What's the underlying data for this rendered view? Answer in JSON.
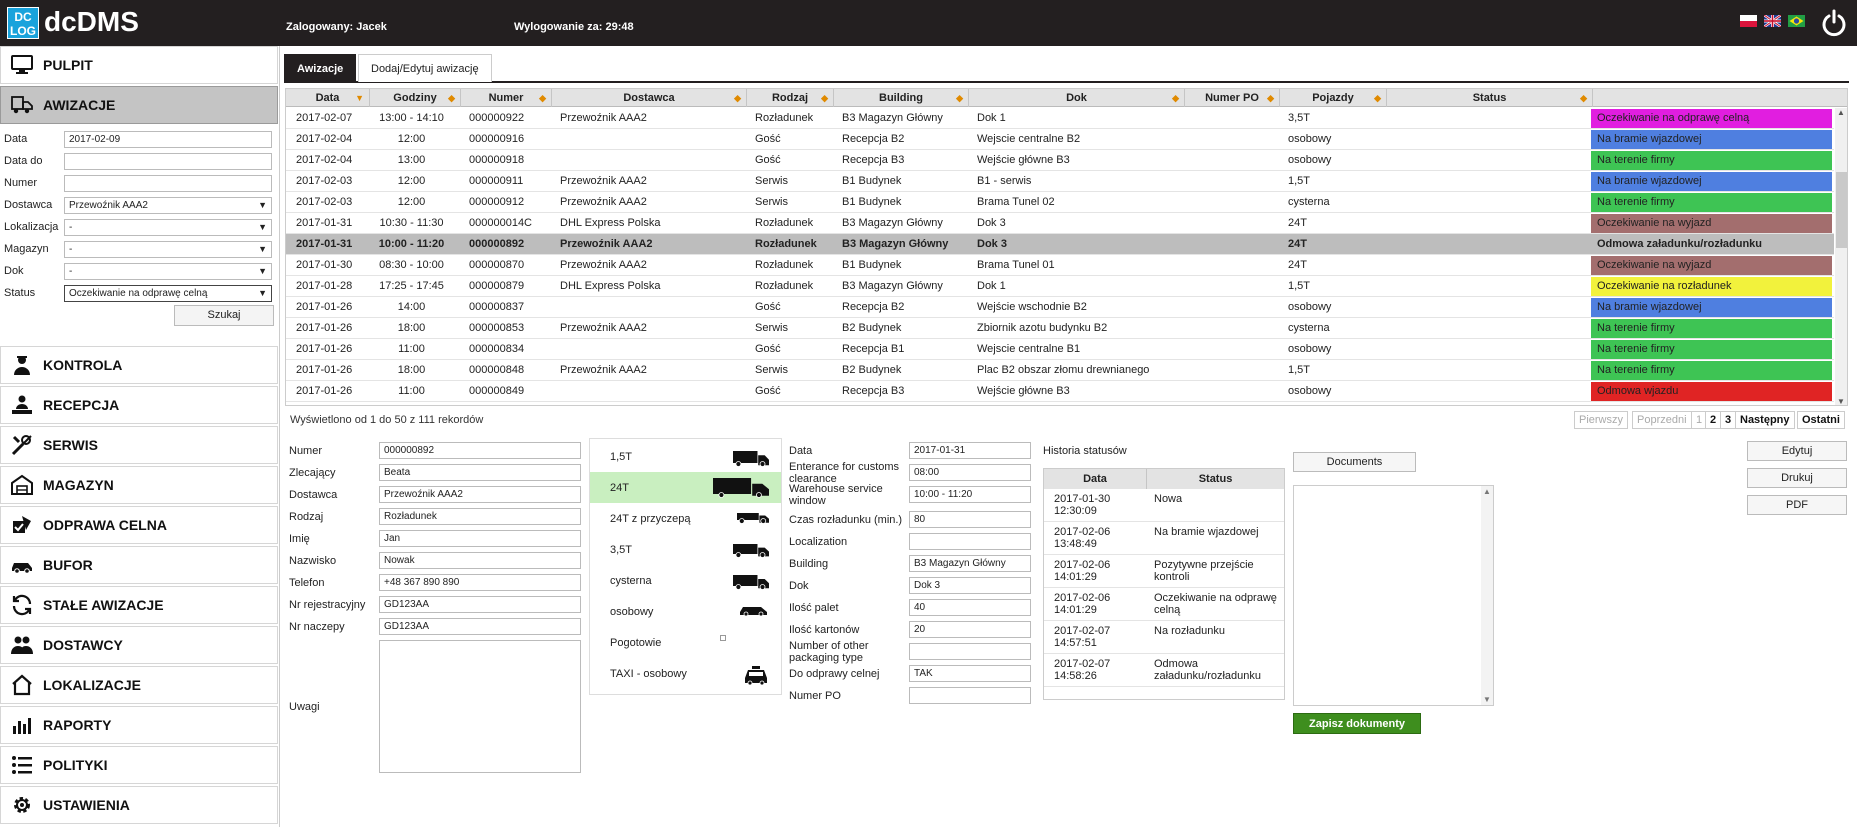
{
  "header": {
    "logo_text": "DC LOG",
    "app_title": "dcDMS",
    "logged_user": "Zalogowany: Jacek",
    "logout_timer": "Wylogowanie za: 29:48",
    "accent_color": "#1aa3dc"
  },
  "sidebar": {
    "items": [
      {
        "label": "PULPIT",
        "icon": "monitor-icon"
      },
      {
        "label": "AWIZACJE",
        "icon": "truck-note-icon",
        "active": true
      },
      {
        "label": "KONTROLA",
        "icon": "guard-icon"
      },
      {
        "label": "RECEPCJA",
        "icon": "reception-icon"
      },
      {
        "label": "SERWIS",
        "icon": "tools-icon"
      },
      {
        "label": "MAGAZYN",
        "icon": "warehouse-icon"
      },
      {
        "label": "ODPRAWA CELNA",
        "icon": "customs-icon"
      },
      {
        "label": "BUFOR",
        "icon": "car-icon"
      },
      {
        "label": "STAŁE AWIZACJE",
        "icon": "refresh-icon"
      },
      {
        "label": "DOSTAWCY",
        "icon": "people-icon"
      },
      {
        "label": "LOKALIZACJE",
        "icon": "home-icon"
      },
      {
        "label": "RAPORTY",
        "icon": "chart-icon"
      },
      {
        "label": "POLITYKI",
        "icon": "list-icon"
      },
      {
        "label": "USTAWIENIA",
        "icon": "gear-icon"
      }
    ],
    "filters": [
      {
        "label": "Data",
        "value": "2017-02-09"
      },
      {
        "label": "Data do",
        "value": ""
      },
      {
        "label": "Numer",
        "value": ""
      },
      {
        "label": "Dostawca",
        "value": "Przewoźnik AAA2",
        "select": true
      },
      {
        "label": "Lokalizacja",
        "value": "-",
        "select": true
      },
      {
        "label": "Magazyn",
        "value": "-",
        "select": true
      },
      {
        "label": "Dok",
        "value": "-",
        "select": true
      },
      {
        "label": "Status",
        "value": "Oczekiwanie na odprawę celną",
        "select": true
      }
    ],
    "search_label": "Szukaj"
  },
  "tabs": [
    "Awizacje",
    "Dodaj/Edytuj awizację"
  ],
  "grid": {
    "columns": [
      "Data",
      "Godziny",
      "Numer",
      "Dostawca",
      "Rodzaj",
      "Building",
      "Dok",
      "Numer PO",
      "Pojazdy",
      "Status"
    ],
    "rows": [
      {
        "data": "2017-02-07",
        "godziny": "13:00 - 14:10",
        "numer": "000000922",
        "dostawca": "Przewoźnik AAA2",
        "rodzaj": "Rozładunek",
        "building": "B3 Magazyn Główny",
        "dok": "Dok 1",
        "po": "",
        "pojazdy": "3,5T",
        "status": "Oczekiwanie na odprawę celną",
        "color": "#e11ee0"
      },
      {
        "data": "2017-02-04",
        "godziny": "12:00",
        "numer": "000000916",
        "dostawca": "",
        "rodzaj": "Gość",
        "building": "Recepcja B2",
        "dok": "Wejscie centralne B2",
        "po": "",
        "pojazdy": "osobowy",
        "status": "Na bramie wjazdowej",
        "color": "#4f7fe0"
      },
      {
        "data": "2017-02-04",
        "godziny": "13:00",
        "numer": "000000918",
        "dostawca": "",
        "rodzaj": "Gość",
        "building": "Recepcja B3",
        "dok": "Wejście główne B3",
        "po": "",
        "pojazdy": "osobowy",
        "status": "Na terenie firmy",
        "color": "#3ec454"
      },
      {
        "data": "2017-02-03",
        "godziny": "12:00",
        "numer": "000000911",
        "dostawca": "Przewoźnik AAA2",
        "rodzaj": "Serwis",
        "building": "B1 Budynek",
        "dok": "B1 - serwis",
        "po": "",
        "pojazdy": "1,5T",
        "status": "Na bramie wjazdowej",
        "color": "#4f7fe0"
      },
      {
        "data": "2017-02-03",
        "godziny": "12:00",
        "numer": "000000912",
        "dostawca": "Przewoźnik AAA2",
        "rodzaj": "Serwis",
        "building": "B1 Budynek",
        "dok": "Brama Tunel 02",
        "po": "",
        "pojazdy": "cysterna",
        "status": "Na terenie firmy",
        "color": "#3ec454"
      },
      {
        "data": "2017-01-31",
        "godziny": "10:30 - 11:30",
        "numer": "000000014C",
        "dostawca": "DHL Express Polska",
        "rodzaj": "Rozładunek",
        "building": "B3 Magazyn Główny",
        "dok": "Dok 3",
        "po": "",
        "pojazdy": "24T",
        "status": "Oczekiwanie na wyjazd",
        "color": "#a36e6e"
      },
      {
        "data": "2017-01-31",
        "godziny": "10:00 - 11:20",
        "numer": "000000892",
        "dostawca": "Przewoźnik AAA2",
        "rodzaj": "Rozładunek",
        "building": "B3 Magazyn Główny",
        "dok": "Dok 3",
        "po": "",
        "pojazdy": "24T",
        "status": "Odmowa załadunku/rozładunku",
        "color": "#bdbdbd",
        "selected": true
      },
      {
        "data": "2017-01-30",
        "godziny": "08:30 - 10:00",
        "numer": "000000870",
        "dostawca": "Przewoźnik AAA2",
        "rodzaj": "Rozładunek",
        "building": "B1 Budynek",
        "dok": "Brama Tunel 01",
        "po": "",
        "pojazdy": "24T",
        "status": "Oczekiwanie na wyjazd",
        "color": "#a36e6e"
      },
      {
        "data": "2017-01-28",
        "godziny": "17:25 - 17:45",
        "numer": "000000879",
        "dostawca": "DHL Express Polska",
        "rodzaj": "Rozładunek",
        "building": "B3 Magazyn Główny",
        "dok": "Dok 1",
        "po": "",
        "pojazdy": "1,5T",
        "status": "Oczekiwanie na rozładunek",
        "color": "#f2f23c"
      },
      {
        "data": "2017-01-26",
        "godziny": "14:00",
        "numer": "000000837",
        "dostawca": "",
        "rodzaj": "Gość",
        "building": "Recepcja B2",
        "dok": "Wejście wschodnie B2",
        "po": "",
        "pojazdy": "osobowy",
        "status": "Na bramie wjazdowej",
        "color": "#4f7fe0"
      },
      {
        "data": "2017-01-26",
        "godziny": "18:00",
        "numer": "000000853",
        "dostawca": "Przewoźnik AAA2",
        "rodzaj": "Serwis",
        "building": "B2 Budynek",
        "dok": "Zbiornik azotu budynku B2",
        "po": "",
        "pojazdy": "cysterna",
        "status": "Na terenie firmy",
        "color": "#3ec454"
      },
      {
        "data": "2017-01-26",
        "godziny": "11:00",
        "numer": "000000834",
        "dostawca": "",
        "rodzaj": "Gość",
        "building": "Recepcja B1",
        "dok": "Wejscie centralne B1",
        "po": "",
        "pojazdy": "osobowy",
        "status": "Na terenie firmy",
        "color": "#3ec454"
      },
      {
        "data": "2017-01-26",
        "godziny": "18:00",
        "numer": "000000848",
        "dostawca": "Przewoźnik AAA2",
        "rodzaj": "Serwis",
        "building": "B2 Budynek",
        "dok": "Plac B2 obszar złomu drewnianego",
        "po": "",
        "pojazdy": "1,5T",
        "status": "Na terenie firmy",
        "color": "#3ec454"
      },
      {
        "data": "2017-01-26",
        "godziny": "11:00",
        "numer": "000000849",
        "dostawca": "",
        "rodzaj": "Gość",
        "building": "Recepcja B3",
        "dok": "Wejście główne B3",
        "po": "",
        "pojazdy": "osobowy",
        "status": "Odmowa wjazdu",
        "color": "#e02424"
      }
    ],
    "records_info": "Wyświetlono od 1 do 50 z 111 rekordów",
    "pager": [
      "Pierwszy",
      "Poprzedni",
      "1",
      "2",
      "3",
      "Następny",
      "Ostatni"
    ]
  },
  "detail_left": [
    {
      "label": "Numer",
      "value": "000000892"
    },
    {
      "label": "Zlecający",
      "value": "Beata"
    },
    {
      "label": "Dostawca",
      "value": "Przewoźnik AAA2"
    },
    {
      "label": "Rodzaj",
      "value": "Rozładunek"
    },
    {
      "label": "Imię",
      "value": "Jan"
    },
    {
      "label": "Nazwisko",
      "value": "Nowak"
    },
    {
      "label": "Telefon",
      "value": "+48 367 890 890"
    },
    {
      "label": "Nr rejestracyjny",
      "value": "GD123AA"
    },
    {
      "label": "Nr naczepy",
      "value": "GD123AA"
    }
  ],
  "uwagi_label": "Uwagi",
  "vehicles": [
    {
      "label": "1,5T"
    },
    {
      "label": "24T",
      "selected": true
    },
    {
      "label": "24T z przyczepą"
    },
    {
      "label": "3,5T"
    },
    {
      "label": "cysterna"
    },
    {
      "label": "osobowy"
    },
    {
      "label": "Pogotowie"
    },
    {
      "label": "TAXI - osobowy"
    }
  ],
  "detail_mid": [
    {
      "label": "Data",
      "value": "2017-01-31"
    },
    {
      "label": "Enterance for customs clearance",
      "value": "08:00"
    },
    {
      "label": "Warehouse service window",
      "value": "10:00 - 11:20"
    },
    {
      "label": "Czas rozładunku (min.)",
      "value": "80"
    },
    {
      "label": "Localization",
      "value": ""
    },
    {
      "label": "Building",
      "value": "B3 Magazyn Główny"
    },
    {
      "label": "Dok",
      "value": "Dok 3"
    },
    {
      "label": "Ilość palet",
      "value": "40"
    },
    {
      "label": "Ilość kartonów",
      "value": "20"
    },
    {
      "label": "Number of other packaging type",
      "value": ""
    },
    {
      "label": "Do odprawy celnej",
      "value": "TAK"
    },
    {
      "label": "Numer PO",
      "value": ""
    }
  ],
  "history": {
    "title": "Historia statusów",
    "col_date": "Data",
    "col_status": "Status",
    "rows": [
      {
        "date": "2017-01-30 12:30:09",
        "status": "Nowa"
      },
      {
        "date": "2017-02-06 13:48:49",
        "status": "Na bramie wjazdowej"
      },
      {
        "date": "2017-02-06 14:01:29",
        "status": "Pozytywne przejście kontroli"
      },
      {
        "date": "2017-02-06 14:01:29",
        "status": "Oczekiwanie na odprawę celną"
      },
      {
        "date": "2017-02-07 14:57:51",
        "status": "Na rozładunku"
      },
      {
        "date": "2017-02-07 14:58:26",
        "status": "Odmowa załadunku/rozładunku"
      }
    ]
  },
  "documents": {
    "button": "Documents",
    "save": "Zapisz dokumenty"
  },
  "actions": {
    "edit": "Edytuj",
    "print": "Drukuj",
    "pdf": "PDF"
  }
}
